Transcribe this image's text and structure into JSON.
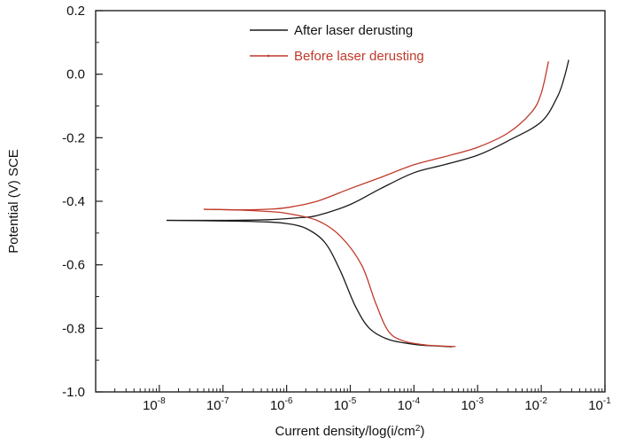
{
  "chart_data": {
    "type": "line",
    "xlabel": "Current density/log(i/cm²)",
    "ylabel": "Potential (V) SCE",
    "x_scale": "log",
    "xlim": [
      1e-09,
      0.1
    ],
    "ylim": [
      -1.0,
      0.2
    ],
    "x_ticks": [
      {
        "value": 1e-08,
        "base": "10",
        "exp": "-8"
      },
      {
        "value": 1e-07,
        "base": "10",
        "exp": "-7"
      },
      {
        "value": 1e-06,
        "base": "10",
        "exp": "-6"
      },
      {
        "value": 1e-05,
        "base": "10",
        "exp": "-5"
      },
      {
        "value": 0.0001,
        "base": "10",
        "exp": "-4"
      },
      {
        "value": 0.001,
        "base": "10",
        "exp": "-3"
      },
      {
        "value": 0.01,
        "base": "10",
        "exp": "-2"
      },
      {
        "value": 0.1,
        "base": "10",
        "exp": "-1"
      }
    ],
    "y_ticks": [
      {
        "value": 0.2,
        "label": "0.2"
      },
      {
        "value": 0.0,
        "label": "0.0"
      },
      {
        "value": -0.2,
        "label": "-0.2"
      },
      {
        "value": -0.4,
        "label": "-0.4"
      },
      {
        "value": -0.6,
        "label": "-0.6"
      },
      {
        "value": -0.8,
        "label": "-0.8"
      },
      {
        "value": -1.0,
        "label": "-1.0"
      }
    ],
    "grid": false,
    "legend_position": "top-center",
    "series": [
      {
        "name": "After laser derusting",
        "color": "#1a1a1a",
        "anodic": [
          [
            1.3e-08,
            -0.46
          ],
          [
            1e-07,
            -0.46
          ],
          [
            5e-07,
            -0.458
          ],
          [
            1.5e-06,
            -0.452
          ],
          [
            3e-06,
            -0.445
          ],
          [
            1e-05,
            -0.41
          ],
          [
            3e-05,
            -0.36
          ],
          [
            0.0001,
            -0.31
          ],
          [
            0.0003,
            -0.285
          ],
          [
            0.001,
            -0.255
          ],
          [
            0.003,
            -0.21
          ],
          [
            0.01,
            -0.15
          ],
          [
            0.018,
            -0.07
          ],
          [
            0.023,
            -0.01
          ],
          [
            0.027,
            0.045
          ]
        ],
        "cathodic": [
          [
            1.3e-08,
            -0.46
          ],
          [
            1e-07,
            -0.462
          ],
          [
            5e-07,
            -0.465
          ],
          [
            1e-06,
            -0.47
          ],
          [
            2e-06,
            -0.485
          ],
          [
            4e-06,
            -0.53
          ],
          [
            7e-06,
            -0.62
          ],
          [
            1.2e-05,
            -0.73
          ],
          [
            2e-05,
            -0.8
          ],
          [
            4e-05,
            -0.835
          ],
          [
            0.0001,
            -0.85
          ],
          [
            0.0002,
            -0.855
          ],
          [
            0.0004,
            -0.858
          ]
        ]
      },
      {
        "name": "Before laser derusting",
        "color": "#c0392b",
        "anodic": [
          [
            5e-08,
            -0.425
          ],
          [
            2e-07,
            -0.427
          ],
          [
            5e-07,
            -0.425
          ],
          [
            1e-06,
            -0.42
          ],
          [
            3e-06,
            -0.4
          ],
          [
            1e-05,
            -0.36
          ],
          [
            3e-05,
            -0.325
          ],
          [
            0.0001,
            -0.285
          ],
          [
            0.0003,
            -0.26
          ],
          [
            0.001,
            -0.23
          ],
          [
            0.003,
            -0.185
          ],
          [
            0.007,
            -0.12
          ],
          [
            0.01,
            -0.06
          ],
          [
            0.013,
            0.04
          ]
        ],
        "cathodic": [
          [
            5e-08,
            -0.425
          ],
          [
            2e-07,
            -0.428
          ],
          [
            5e-07,
            -0.432
          ],
          [
            1e-06,
            -0.438
          ],
          [
            3e-06,
            -0.46
          ],
          [
            7e-06,
            -0.51
          ],
          [
            1.5e-05,
            -0.6
          ],
          [
            2.5e-05,
            -0.72
          ],
          [
            4e-05,
            -0.81
          ],
          [
            7e-05,
            -0.84
          ],
          [
            0.00015,
            -0.852
          ],
          [
            0.0003,
            -0.856
          ],
          [
            0.00045,
            -0.857
          ]
        ]
      }
    ]
  }
}
